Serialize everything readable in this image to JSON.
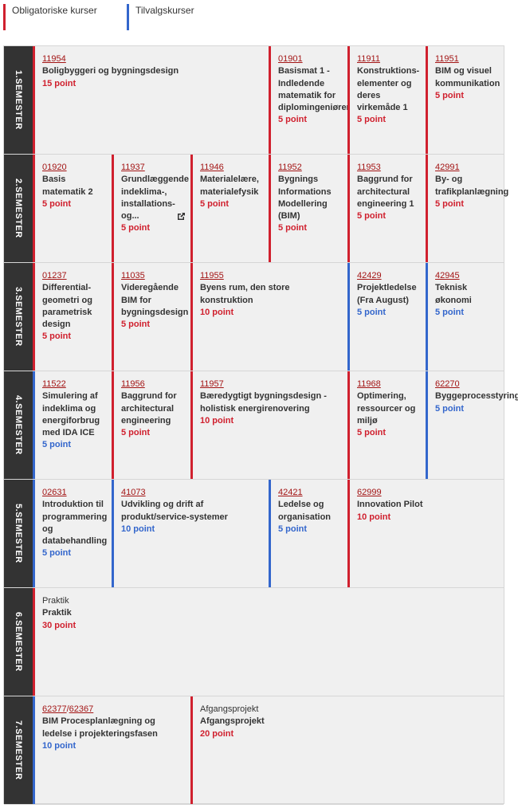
{
  "legend": {
    "mandatory": "Obligatoriske kurser",
    "elective": "Tilvalgskurser",
    "mandatory_color": "#d0202e",
    "elective_color": "#3366cc"
  },
  "semesters": [
    {
      "label": "1.SEMESTER",
      "courses": [
        {
          "code": [
            "11954"
          ],
          "title": [
            "Boligbyggeri og bygningsdesign"
          ],
          "points": "15 point",
          "type": "mandatory"
        },
        {
          "code": [
            "01901"
          ],
          "title": [
            "Basismat 1 -",
            "Indledende",
            "matematik for",
            "diplomingeniører"
          ],
          "points": "5 point",
          "type": "mandatory"
        },
        {
          "code": [
            "11911"
          ],
          "title": [
            "Konstruktions-",
            "elementer og",
            "deres",
            "virkemåde 1"
          ],
          "points": "5 point",
          "type": "mandatory"
        },
        {
          "code": [
            "11951"
          ],
          "title": [
            "BIM og visuel",
            "kommunikation"
          ],
          "points": "5 point",
          "type": "mandatory"
        }
      ]
    },
    {
      "label": "2.SEMESTER",
      "courses": [
        {
          "code": [
            "01920"
          ],
          "title": [
            "Basis",
            "matematik 2"
          ],
          "points": "5 point",
          "type": "mandatory"
        },
        {
          "code": [
            "11937"
          ],
          "title": [
            "Grundlæggende",
            "indeklima-,",
            "installations-",
            "og..."
          ],
          "points": "5 point",
          "type": "mandatory"
        },
        {
          "code": [
            "11946"
          ],
          "title": [
            "Materialelære,",
            "materialefysik"
          ],
          "points": "5 point",
          "type": "mandatory"
        },
        {
          "code": [
            "11952"
          ],
          "title": [
            "Bygnings",
            "Informations",
            "Modellering",
            "(BIM)"
          ],
          "points": "5 point",
          "type": "mandatory"
        },
        {
          "code": [
            "11953"
          ],
          "title": [
            "Baggrund for",
            "architectural",
            "engineering 1"
          ],
          "points": "5 point",
          "type": "mandatory"
        },
        {
          "code": [
            "42991"
          ],
          "title": [
            "By- og",
            "trafikplanlægning"
          ],
          "points": "5 point",
          "type": "mandatory"
        }
      ]
    },
    {
      "label": "3.SEMESTER",
      "courses": [
        {
          "code": [
            "01237"
          ],
          "title": [
            "Differential-",
            "geometri og",
            "parametrisk",
            "design"
          ],
          "points": "5 point",
          "type": "mandatory"
        },
        {
          "code": [
            "11035"
          ],
          "title": [
            "Videregående",
            "BIM for",
            "bygningsdesign"
          ],
          "points": "5 point",
          "type": "mandatory"
        },
        {
          "code": [
            "11955"
          ],
          "title": [
            "Byens rum, den store",
            "konstruktion"
          ],
          "points": "10 point",
          "type": "mandatory"
        },
        {
          "code": [
            "42429"
          ],
          "title": [
            "Projektledelse",
            "(Fra August)"
          ],
          "points": "5 point",
          "type": "elective"
        },
        {
          "code": [
            "42945"
          ],
          "title": [
            "Teknisk",
            "økonomi"
          ],
          "points": "5 point",
          "type": "elective"
        }
      ]
    },
    {
      "label": "4.SEMESTER",
      "courses": [
        {
          "code": [
            "11522"
          ],
          "title": [
            "Simulering af",
            "indeklima og",
            "energiforbrug",
            "med IDA ICE"
          ],
          "points": "5 point",
          "type": "elective"
        },
        {
          "code": [
            "11956"
          ],
          "title": [
            "Baggrund for",
            "architectural",
            "engineering"
          ],
          "points": "5 point",
          "type": "mandatory"
        },
        {
          "code": [
            "11957"
          ],
          "title": [
            "Bæredygtigt bygningsdesign -",
            "holistisk energirenovering"
          ],
          "points": "10 point",
          "type": "mandatory"
        },
        {
          "code": [
            "11968"
          ],
          "title": [
            "Optimering,",
            "ressourcer og",
            "miljø"
          ],
          "points": "5 point",
          "type": "mandatory"
        },
        {
          "code": [
            "62270"
          ],
          "title": [
            "Byggeprocesstyring"
          ],
          "points": "5 point",
          "type": "elective"
        }
      ]
    },
    {
      "label": "5.SEMESTER",
      "courses": [
        {
          "code": [
            "02631"
          ],
          "title": [
            "Introduktion til",
            "programmering",
            "og",
            "databehandling"
          ],
          "points": "5 point",
          "type": "elective"
        },
        {
          "code": [
            "41073"
          ],
          "title": [
            "Udvikling og drift af",
            "produkt/service-systemer"
          ],
          "points": "10 point",
          "type": "elective"
        },
        {
          "code": [
            "42421"
          ],
          "title": [
            "Ledelse og",
            "organisation"
          ],
          "points": "5 point",
          "type": "elective"
        },
        {
          "code": [
            "62999"
          ],
          "title": [
            "Innovation Pilot"
          ],
          "points": "10 point",
          "type": "mandatory"
        }
      ]
    },
    {
      "label": "6.SEMESTER",
      "courses": [
        {
          "kind": "Praktik",
          "title": [
            "Praktik"
          ],
          "points": "30 point",
          "type": "mandatory"
        }
      ]
    },
    {
      "label": "7.SEMESTER",
      "courses": [
        {
          "code": [
            "62377",
            "/",
            "62367"
          ],
          "title": [
            "BIM Procesplanlægning og",
            "ledelse i projekteringsfasen"
          ],
          "points": "10 point",
          "type": "elective"
        },
        {
          "kind": "Afgangsprojekt",
          "title": [
            "Afgangsprojekt"
          ],
          "points": "20 point",
          "type": "mandatory"
        }
      ]
    }
  ]
}
